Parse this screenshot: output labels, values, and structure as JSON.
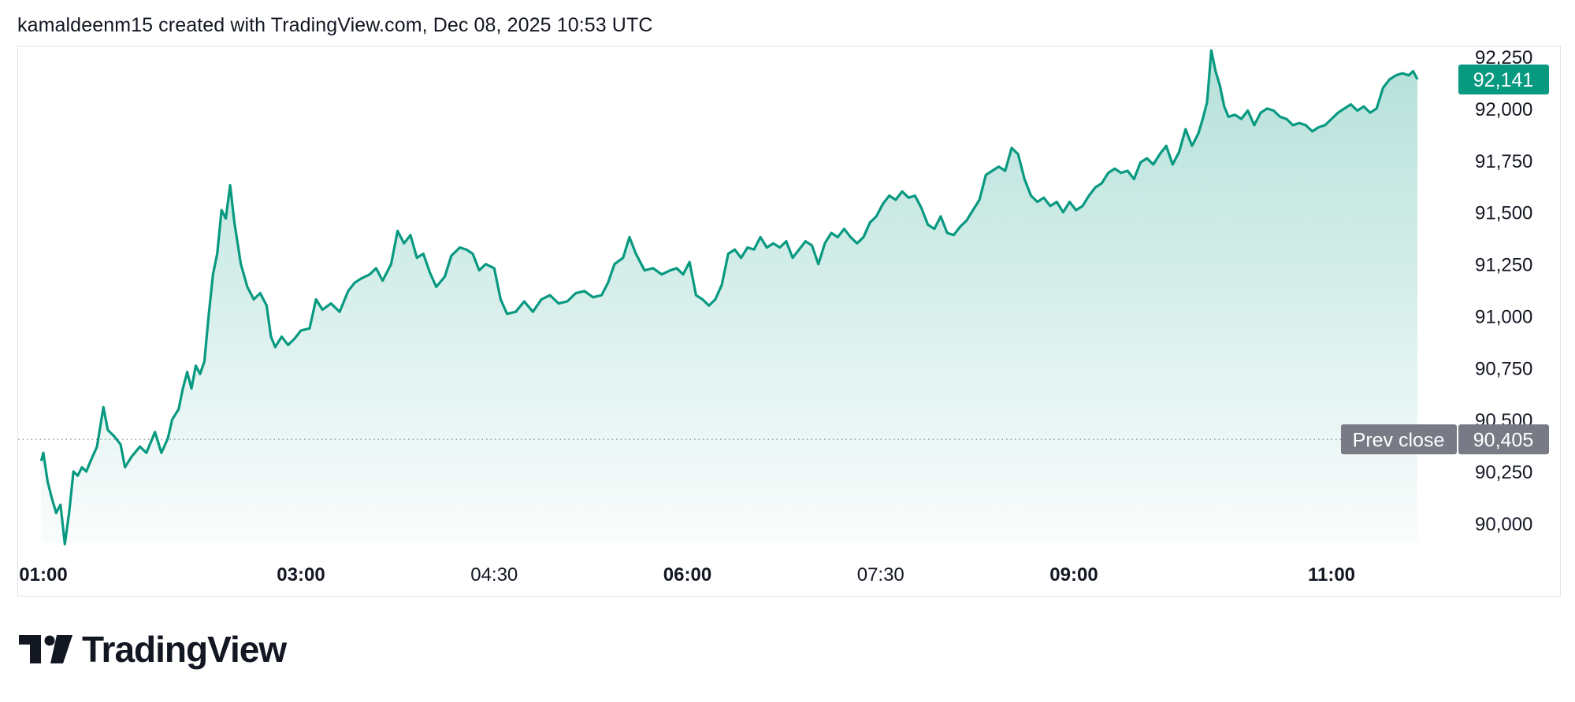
{
  "header": {
    "text": "kamaldeenm15 created with TradingView.com, Dec 08, 2025 10:53 UTC"
  },
  "brand": {
    "name": "TradingView"
  },
  "colors": {
    "line": "#089981",
    "fill_top": "#b7e2d8",
    "prev_close": "#787b86",
    "text": "#131722"
  },
  "chart_data": {
    "type": "area",
    "x_labels": [
      "01:00",
      "03:00",
      "04:30",
      "06:00",
      "07:30",
      "09:00",
      "11:00"
    ],
    "x_labels_bold": [
      true,
      true,
      false,
      true,
      false,
      true,
      true
    ],
    "x_label_times": [
      "01:00",
      "03:00",
      "04:30",
      "06:00",
      "07:30",
      "09:00",
      "11:00"
    ],
    "y_ticks": [
      "92,250",
      "92,000",
      "91,750",
      "91,500",
      "91,250",
      "91,000",
      "90,750",
      "90,500",
      "90,250",
      "90,000"
    ],
    "y_tick_values": [
      92250,
      92000,
      91750,
      91500,
      91250,
      91000,
      90750,
      90500,
      90250,
      90000
    ],
    "ylim": [
      90000,
      92250
    ],
    "last_price": {
      "label": "92,141",
      "value": 92141
    },
    "prev_close": {
      "title": "Prev close",
      "label": "90,405",
      "value": 90405
    },
    "series": [
      {
        "points": [
          [
            "00:59",
            90300
          ],
          [
            "01:00",
            90340
          ],
          [
            "01:02",
            90200
          ],
          [
            "01:04",
            90120
          ],
          [
            "01:06",
            90050
          ],
          [
            "01:08",
            90090
          ],
          [
            "01:10",
            89900
          ],
          [
            "01:12",
            90050
          ],
          [
            "01:14",
            90250
          ],
          [
            "01:16",
            90230
          ],
          [
            "01:18",
            90270
          ],
          [
            "01:20",
            90250
          ],
          [
            "01:22",
            90300
          ],
          [
            "01:25",
            90370
          ],
          [
            "01:28",
            90560
          ],
          [
            "01:30",
            90450
          ],
          [
            "01:33",
            90420
          ],
          [
            "01:36",
            90380
          ],
          [
            "01:38",
            90270
          ],
          [
            "01:41",
            90320
          ],
          [
            "01:45",
            90370
          ],
          [
            "01:48",
            90340
          ],
          [
            "01:52",
            90440
          ],
          [
            "01:55",
            90340
          ],
          [
            "01:58",
            90410
          ],
          [
            "02:00",
            90500
          ],
          [
            "02:03",
            90550
          ],
          [
            "02:05",
            90650
          ],
          [
            "02:07",
            90730
          ],
          [
            "02:09",
            90650
          ],
          [
            "02:11",
            90760
          ],
          [
            "02:13",
            90720
          ],
          [
            "02:15",
            90780
          ],
          [
            "02:17",
            91000
          ],
          [
            "02:19",
            91200
          ],
          [
            "02:21",
            91300
          ],
          [
            "02:23",
            91510
          ],
          [
            "02:25",
            91470
          ],
          [
            "02:27",
            91630
          ],
          [
            "02:29",
            91450
          ],
          [
            "02:32",
            91250
          ],
          [
            "02:35",
            91140
          ],
          [
            "02:38",
            91080
          ],
          [
            "02:41",
            91110
          ],
          [
            "02:44",
            91050
          ],
          [
            "02:46",
            90900
          ],
          [
            "02:48",
            90850
          ],
          [
            "02:51",
            90900
          ],
          [
            "02:54",
            90860
          ],
          [
            "02:57",
            90890
          ],
          [
            "03:00",
            90930
          ],
          [
            "03:04",
            90940
          ],
          [
            "03:07",
            91080
          ],
          [
            "03:10",
            91030
          ],
          [
            "03:14",
            91060
          ],
          [
            "03:18",
            91020
          ],
          [
            "03:22",
            91120
          ],
          [
            "03:25",
            91160
          ],
          [
            "03:28",
            91180
          ],
          [
            "03:32",
            91200
          ],
          [
            "03:35",
            91230
          ],
          [
            "03:38",
            91170
          ],
          [
            "03:42",
            91250
          ],
          [
            "03:45",
            91410
          ],
          [
            "03:48",
            91350
          ],
          [
            "03:51",
            91390
          ],
          [
            "03:54",
            91280
          ],
          [
            "03:57",
            91300
          ],
          [
            "04:00",
            91210
          ],
          [
            "04:03",
            91140
          ],
          [
            "04:07",
            91190
          ],
          [
            "04:10",
            91290
          ],
          [
            "04:14",
            91330
          ],
          [
            "04:17",
            91320
          ],
          [
            "04:20",
            91300
          ],
          [
            "04:23",
            91220
          ],
          [
            "04:26",
            91250
          ],
          [
            "04:30",
            91230
          ],
          [
            "04:33",
            91080
          ],
          [
            "04:36",
            91010
          ],
          [
            "04:40",
            91020
          ],
          [
            "04:44",
            91070
          ],
          [
            "04:48",
            91020
          ],
          [
            "04:52",
            91080
          ],
          [
            "04:56",
            91100
          ],
          [
            "05:00",
            91060
          ],
          [
            "05:04",
            91070
          ],
          [
            "05:08",
            91110
          ],
          [
            "05:12",
            91120
          ],
          [
            "05:16",
            91090
          ],
          [
            "05:20",
            91100
          ],
          [
            "05:23",
            91160
          ],
          [
            "05:26",
            91250
          ],
          [
            "05:30",
            91280
          ],
          [
            "05:33",
            91380
          ],
          [
            "05:36",
            91300
          ],
          [
            "05:40",
            91220
          ],
          [
            "05:44",
            91230
          ],
          [
            "05:48",
            91200
          ],
          [
            "05:52",
            91220
          ],
          [
            "05:55",
            91230
          ],
          [
            "05:58",
            91200
          ],
          [
            "06:01",
            91260
          ],
          [
            "06:04",
            91100
          ],
          [
            "06:07",
            91080
          ],
          [
            "06:10",
            91050
          ],
          [
            "06:13",
            91080
          ],
          [
            "06:16",
            91150
          ],
          [
            "06:19",
            91300
          ],
          [
            "06:22",
            91320
          ],
          [
            "06:25",
            91280
          ],
          [
            "06:28",
            91330
          ],
          [
            "06:31",
            91320
          ],
          [
            "06:34",
            91380
          ],
          [
            "06:37",
            91330
          ],
          [
            "06:40",
            91350
          ],
          [
            "06:43",
            91330
          ],
          [
            "06:46",
            91360
          ],
          [
            "06:49",
            91280
          ],
          [
            "06:52",
            91320
          ],
          [
            "06:55",
            91360
          ],
          [
            "06:58",
            91340
          ],
          [
            "07:01",
            91250
          ],
          [
            "07:04",
            91350
          ],
          [
            "07:07",
            91400
          ],
          [
            "07:10",
            91380
          ],
          [
            "07:13",
            91420
          ],
          [
            "07:16",
            91380
          ],
          [
            "07:19",
            91350
          ],
          [
            "07:22",
            91380
          ],
          [
            "07:25",
            91450
          ],
          [
            "07:28",
            91480
          ],
          [
            "07:31",
            91540
          ],
          [
            "07:34",
            91580
          ],
          [
            "07:37",
            91560
          ],
          [
            "07:40",
            91600
          ],
          [
            "07:43",
            91570
          ],
          [
            "07:46",
            91580
          ],
          [
            "07:49",
            91520
          ],
          [
            "07:52",
            91440
          ],
          [
            "07:55",
            91420
          ],
          [
            "07:58",
            91480
          ],
          [
            "08:01",
            91400
          ],
          [
            "08:04",
            91390
          ],
          [
            "08:07",
            91430
          ],
          [
            "08:10",
            91460
          ],
          [
            "08:13",
            91510
          ],
          [
            "08:16",
            91560
          ],
          [
            "08:19",
            91680
          ],
          [
            "08:22",
            91700
          ],
          [
            "08:25",
            91720
          ],
          [
            "08:28",
            91700
          ],
          [
            "08:31",
            91810
          ],
          [
            "08:34",
            91780
          ],
          [
            "08:37",
            91660
          ],
          [
            "08:40",
            91580
          ],
          [
            "08:43",
            91550
          ],
          [
            "08:46",
            91570
          ],
          [
            "08:49",
            91530
          ],
          [
            "08:52",
            91550
          ],
          [
            "08:55",
            91500
          ],
          [
            "08:58",
            91550
          ],
          [
            "09:01",
            91510
          ],
          [
            "09:04",
            91530
          ],
          [
            "09:07",
            91580
          ],
          [
            "09:10",
            91620
          ],
          [
            "09:13",
            91640
          ],
          [
            "09:16",
            91690
          ],
          [
            "09:19",
            91710
          ],
          [
            "09:22",
            91690
          ],
          [
            "09:25",
            91700
          ],
          [
            "09:28",
            91660
          ],
          [
            "09:31",
            91740
          ],
          [
            "09:34",
            91760
          ],
          [
            "09:37",
            91730
          ],
          [
            "09:40",
            91780
          ],
          [
            "09:43",
            91820
          ],
          [
            "09:46",
            91730
          ],
          [
            "09:49",
            91790
          ],
          [
            "09:52",
            91900
          ],
          [
            "09:55",
            91820
          ],
          [
            "09:58",
            91880
          ],
          [
            "10:00",
            91950
          ],
          [
            "10:02",
            92030
          ],
          [
            "10:04",
            92280
          ],
          [
            "10:06",
            92180
          ],
          [
            "10:08",
            92110
          ],
          [
            "10:10",
            92010
          ],
          [
            "10:12",
            91960
          ],
          [
            "10:15",
            91970
          ],
          [
            "10:18",
            91950
          ],
          [
            "10:21",
            91990
          ],
          [
            "10:24",
            91920
          ],
          [
            "10:27",
            91980
          ],
          [
            "10:30",
            92000
          ],
          [
            "10:33",
            91990
          ],
          [
            "10:36",
            91960
          ],
          [
            "10:39",
            91950
          ],
          [
            "10:42",
            91920
          ],
          [
            "10:45",
            91930
          ],
          [
            "10:48",
            91920
          ],
          [
            "10:51",
            91890
          ],
          [
            "10:54",
            91910
          ],
          [
            "10:57",
            91920
          ],
          [
            "11:00",
            91950
          ],
          [
            "11:03",
            91980
          ],
          [
            "11:06",
            92000
          ],
          [
            "11:09",
            92020
          ],
          [
            "11:12",
            91990
          ],
          [
            "11:15",
            92010
          ],
          [
            "11:18",
            91980
          ],
          [
            "11:21",
            92000
          ],
          [
            "11:24",
            92100
          ],
          [
            "11:27",
            92140
          ],
          [
            "11:30",
            92160
          ],
          [
            "11:33",
            92170
          ],
          [
            "11:36",
            92160
          ],
          [
            "11:38",
            92180
          ],
          [
            "11:40",
            92141
          ]
        ]
      }
    ]
  }
}
